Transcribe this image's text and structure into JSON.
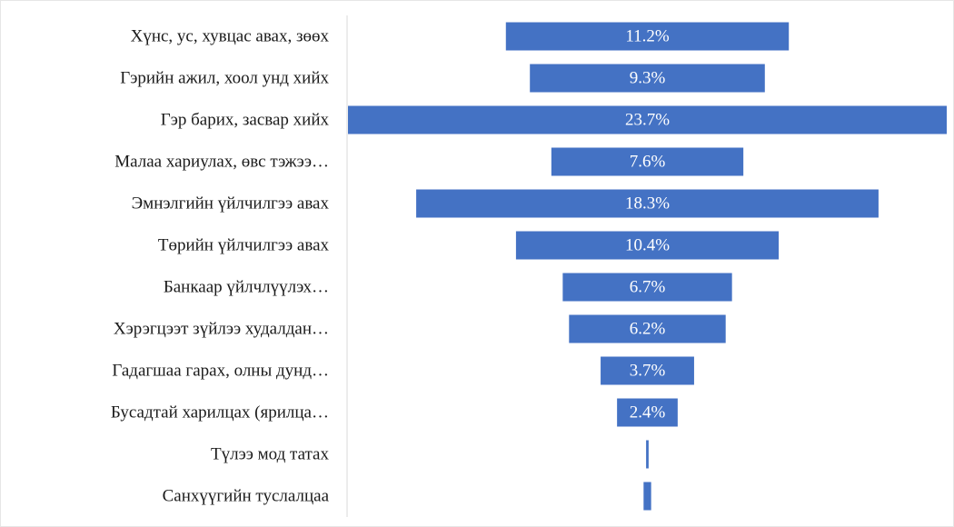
{
  "chart_data": {
    "type": "bar",
    "orientation": "horizontal",
    "style": "funnel",
    "title": "",
    "xlabel": "",
    "ylabel": "",
    "categories": [
      "Хүнс, ус, хувцас авах, зөөх",
      "Гэрийн ажил, хоол унд хийх",
      "Гэр барих, засвар хийх",
      "Малаа хариулах, өвс тэжээ…",
      "Эмнэлгийн үйлчилгээ авах",
      "Төрийн үйлчилгээ авах",
      "Банкаар үйлчлүүлэх…",
      "Хэрэгцээт зүйлээ худалдан…",
      "Гадагшаа гарах, олны дунд…",
      "Бусадтай харилцах (ярилца…",
      "Түлээ мод татах",
      "Санхүүгийн туслалцаа"
    ],
    "values": [
      11.2,
      9.3,
      23.7,
      7.6,
      18.3,
      10.4,
      6.7,
      6.2,
      3.7,
      2.4,
      0.1,
      0.3
    ],
    "labels": [
      "11.2%",
      "9.3%",
      "23.7%",
      "7.6%",
      "18.3%",
      "10.4%",
      "6.7%",
      "6.2%",
      "3.7%",
      "2.4%",
      "",
      ""
    ],
    "bar_color": "#4472C4",
    "label_color": "#FFFFFF",
    "xlim": [
      0,
      23.7
    ],
    "grid": false,
    "legend": "none"
  }
}
